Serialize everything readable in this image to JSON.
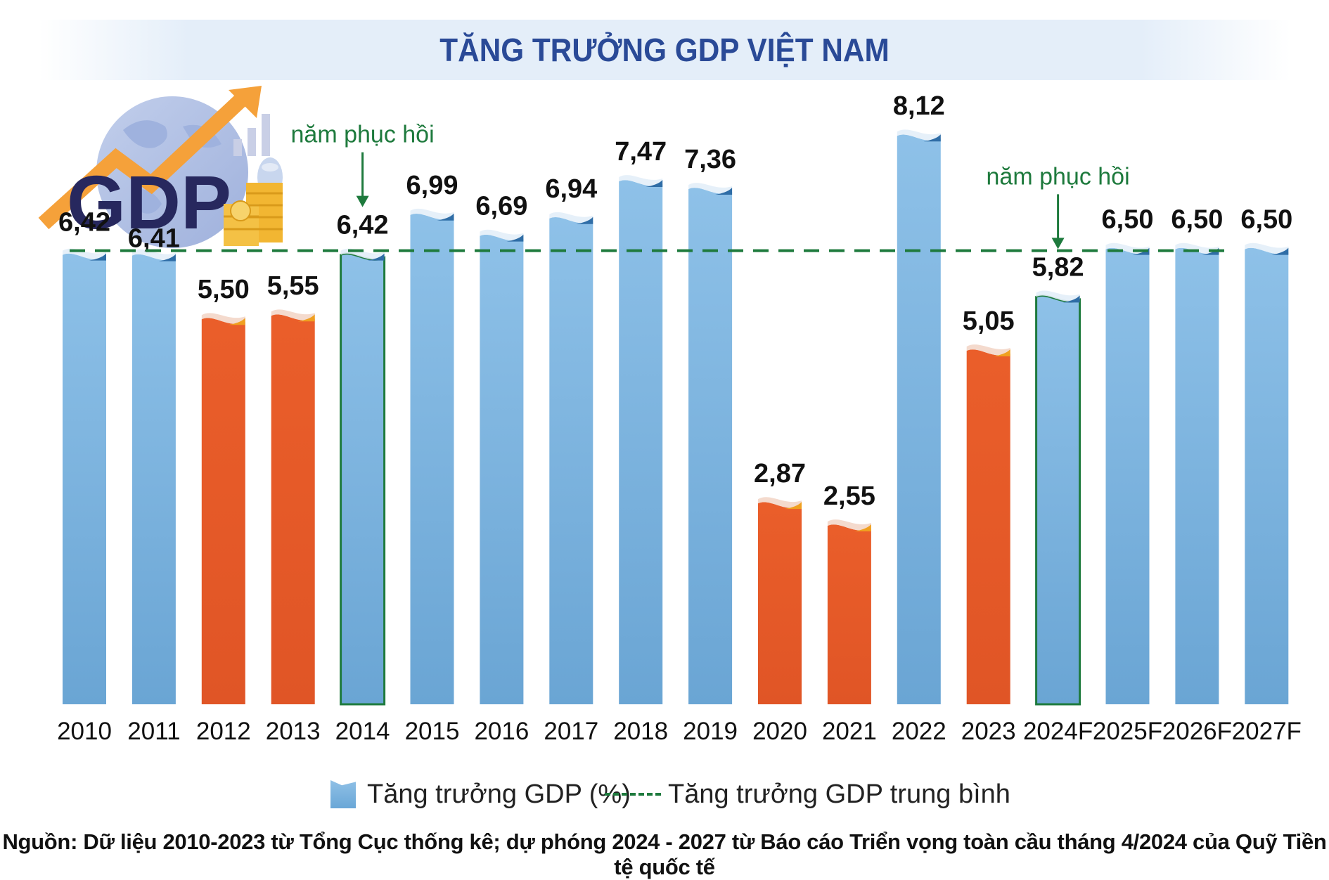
{
  "title": "TĂNG TRƯỞNG GDP VIỆT NAM",
  "chart_data": {
    "type": "bar",
    "categories": [
      "2010",
      "2011",
      "2012",
      "2013",
      "2014",
      "2015",
      "2016",
      "2017",
      "2018",
      "2019",
      "2020",
      "2021",
      "2022",
      "2023",
      "2024F",
      "2025F",
      "2026F",
      "2027F"
    ],
    "values": [
      6.42,
      6.41,
      5.5,
      5.55,
      6.42,
      6.99,
      6.69,
      6.94,
      7.47,
      7.36,
      2.87,
      2.55,
      8.12,
      5.05,
      5.82,
      6.5,
      6.5,
      6.5
    ],
    "value_labels": [
      "6,42",
      "6,41",
      "5,50",
      "5,55",
      "6,42",
      "6,99",
      "6,69",
      "6,94",
      "7,47",
      "7,36",
      "2,87",
      "2,55",
      "8,12",
      "5,05",
      "5,82",
      "6,50",
      "6,50",
      "6,50"
    ],
    "bar_style": [
      "blue",
      "blue",
      "orange",
      "orange",
      "outlined",
      "blue",
      "blue",
      "blue",
      "blue",
      "blue",
      "orange",
      "orange",
      "blue",
      "orange",
      "outlined",
      "blue",
      "blue",
      "blue"
    ],
    "average_value": 6.42,
    "annotations": [
      {
        "text": "năm phục hồi",
        "category": "2014"
      },
      {
        "text": "năm phục hồi",
        "category": "2024F"
      }
    ],
    "legend": [
      "Tăng trưởng GDP (%)",
      "Tăng trưởng GDP trung bình"
    ],
    "legend_placement": "bottom",
    "ylim": [
      0,
      8.5
    ],
    "grid": false,
    "colors": {
      "blue": "#6ea9d8",
      "orange": "#e45a29",
      "green": "#1e7a3d",
      "title": "#2a4a97"
    }
  },
  "logo": {
    "text": "GDP"
  },
  "source": "Nguồn: Dữ liệu 2010-2023 từ Tổng Cục thống kê; dự phóng 2024 - 2027 từ Báo cáo Triển vọng toàn cầu tháng 4/2024 của Quỹ Tiền tệ quốc tế"
}
